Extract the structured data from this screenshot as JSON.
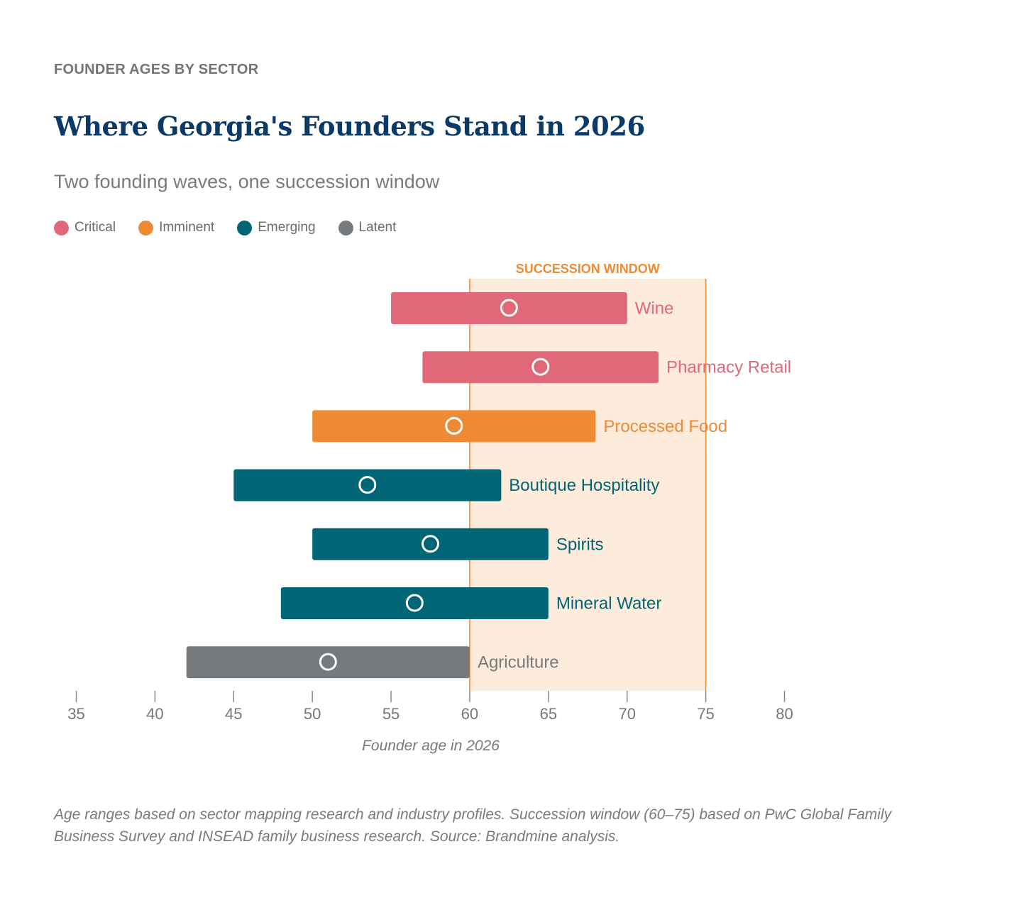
{
  "header": {
    "eyebrow": "FOUNDER AGES BY SECTOR",
    "title": "Where Georgia's Founders Stand in 2026",
    "subtitle": "Two founding waves, one succession window"
  },
  "legend": [
    {
      "label": "Critical",
      "color": "#e06878"
    },
    {
      "label": "Imminent",
      "color": "#ee8a33"
    },
    {
      "label": "Emerging",
      "color": "#006675"
    },
    {
      "label": "Latent",
      "color": "#767a7c"
    }
  ],
  "chart_data": {
    "type": "range-bar",
    "xlabel": "Founder age in 2026",
    "xlim": [
      35,
      80
    ],
    "xticks": [
      35,
      40,
      45,
      50,
      55,
      60,
      65,
      70,
      75,
      80
    ],
    "succession_window": {
      "label": "SUCCESSION WINDOW",
      "start": 60,
      "end": 75
    },
    "series": [
      {
        "sector": "Wine",
        "category": "Critical",
        "min": 55,
        "max": 70,
        "marker": 62.5
      },
      {
        "sector": "Pharmacy Retail",
        "category": "Critical",
        "min": 57,
        "max": 72,
        "marker": 64.5
      },
      {
        "sector": "Processed Food",
        "category": "Imminent",
        "min": 50,
        "max": 68,
        "marker": 59
      },
      {
        "sector": "Boutique Hospitality",
        "category": "Emerging",
        "min": 45,
        "max": 62,
        "marker": 53.5
      },
      {
        "sector": "Spirits",
        "category": "Emerging",
        "min": 50,
        "max": 65,
        "marker": 57.5
      },
      {
        "sector": "Mineral Water",
        "category": "Emerging",
        "min": 48,
        "max": 65,
        "marker": 56.5
      },
      {
        "sector": "Agriculture",
        "category": "Latent",
        "min": 42,
        "max": 60,
        "marker": 51
      }
    ]
  },
  "footnote": "Age ranges based on sector mapping research and industry profiles. Succession window (60–75) based on PwC Global Family Business Survey and INSEAD family business research. Source: Brandmine analysis."
}
